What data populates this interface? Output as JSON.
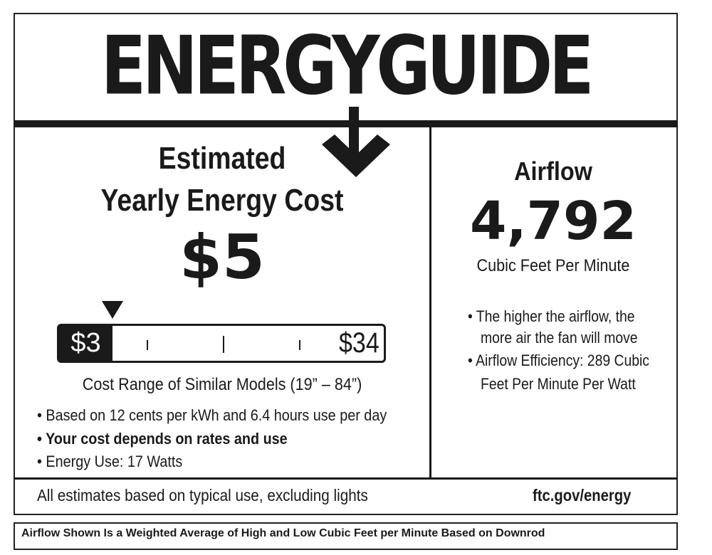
{
  "title": "ENERGYGUIDE",
  "cost": {
    "heading_line1": "Estimated",
    "heading_line2": "Yearly Energy Cost",
    "value": "$5",
    "range_low": "$3",
    "range_high": "$34",
    "range_low_value": 3,
    "range_high_value": 34,
    "marker_value": 5,
    "range_caption": "Cost Range of Similar Models (19” – 84”)"
  },
  "bullets": [
    {
      "text": "• Based on 12 cents per kWh and 6.4 hours use per day"
    },
    {
      "text": "• Your cost depends on rates and use"
    },
    {
      "text": "• Energy Use: 17 Watts"
    }
  ],
  "airflow": {
    "label": "Airflow",
    "value": "4,792",
    "unit": "Cubic Feet Per Minute",
    "bullets": [
      "• The higher the airflow, the",
      "more air the fan will move",
      "• Airflow Efficiency: 289 Cubic",
      "Feet Per Minute Per Watt"
    ]
  },
  "footer": {
    "note": "All estimates based on typical use, excluding lights",
    "link": "ftc.gov/energy"
  },
  "bottom_note": "Airflow Shown Is a Weighted Average of High and Low Cubic Feet per Minute Based on Downrod"
}
